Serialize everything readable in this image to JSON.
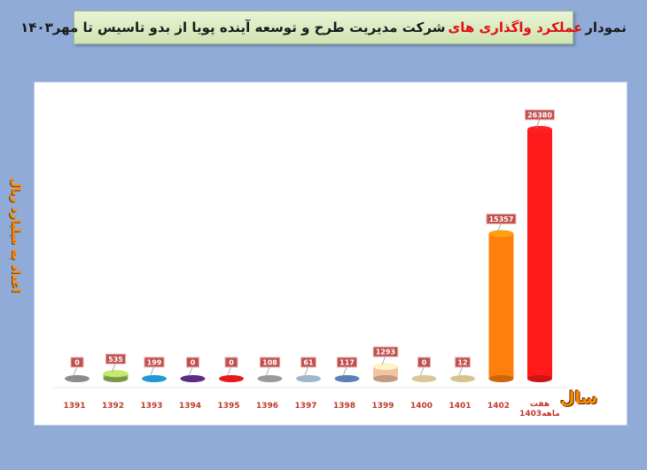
{
  "title": {
    "part1": "نمودار",
    "highlight": "عملکرد واگذاری های",
    "part2": "شرکت مدیریت طرح و توسعه آینده پویا از بدو تاسیس تا مهر۱۴۰۳"
  },
  "chart_data": {
    "type": "bar",
    "xlabel": "سال",
    "ylabel": "اعداد به میلیارد ریال",
    "categories": [
      "1391",
      "1392",
      "1393",
      "1394",
      "1395",
      "1396",
      "1397",
      "1398",
      "1399",
      "1400",
      "1401",
      "1402",
      "هفت ماهه1403"
    ],
    "values": [
      0,
      535,
      199,
      0,
      0,
      108,
      61,
      117,
      1293,
      0,
      12,
      15357,
      26380
    ],
    "data_labels": [
      "0",
      "535",
      "199",
      "0",
      "0",
      "108",
      "61",
      "117",
      "1293",
      "0",
      "12",
      "15357",
      "26380"
    ],
    "colors": [
      "#8c8c8c",
      "#9bbb59",
      "#1f9bd4",
      "#5b2c83",
      "#e41a1c",
      "#9a9a9a",
      "#9fb6cf",
      "#5c7fb5",
      "#f4c2a1",
      "#d8c79a",
      "#d6c48f",
      "#ff7f0e",
      "#ff1a1a"
    ],
    "ylim": [
      0,
      28000
    ],
    "grid": false
  }
}
